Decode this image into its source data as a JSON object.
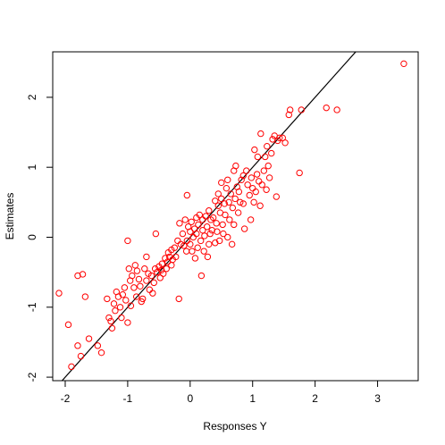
{
  "chart_data": {
    "type": "scatter",
    "title": "",
    "xlabel": "Responses Y",
    "ylabel": "Estimates",
    "xlim": [
      -2.2,
      3.65
    ],
    "ylim": [
      -2.05,
      2.65
    ],
    "xticks": [
      -2,
      -1,
      0,
      1,
      2,
      3
    ],
    "yticks": [
      -2,
      -1,
      0,
      1,
      2
    ],
    "grid": false,
    "point_color": "#ff0000",
    "line_color": "#000000",
    "reference_line": {
      "intercept": 0,
      "slope": 1
    },
    "series": [
      {
        "points": [
          [
            -2.1,
            -0.8
          ],
          [
            -1.95,
            -1.25
          ],
          [
            -1.9,
            -1.85
          ],
          [
            -1.8,
            -1.55
          ],
          [
            -1.75,
            -1.7
          ],
          [
            -1.8,
            -0.55
          ],
          [
            -1.72,
            -0.53
          ],
          [
            -1.68,
            -0.85
          ],
          [
            -1.62,
            -1.45
          ],
          [
            -1.48,
            -1.55
          ],
          [
            -1.42,
            -1.65
          ],
          [
            -1.33,
            -0.88
          ],
          [
            -1.3,
            -1.15
          ],
          [
            -1.27,
            -1.2
          ],
          [
            -1.25,
            -1.3
          ],
          [
            -1.22,
            -0.95
          ],
          [
            -1.2,
            -1.05
          ],
          [
            -1.18,
            -0.78
          ],
          [
            -1.15,
            -0.85
          ],
          [
            -1.12,
            -1.0
          ],
          [
            -1.1,
            -1.15
          ],
          [
            -1.08,
            -0.82
          ],
          [
            -1.05,
            -0.72
          ],
          [
            -1.03,
            -0.9
          ],
          [
            -1.0,
            -1.22
          ],
          [
            -1.0,
            -0.05
          ],
          [
            -0.98,
            -0.45
          ],
          [
            -0.96,
            -0.62
          ],
          [
            -0.95,
            -0.98
          ],
          [
            -0.93,
            -0.55
          ],
          [
            -0.9,
            -0.72
          ],
          [
            -0.88,
            -0.4
          ],
          [
            -0.86,
            -0.85
          ],
          [
            -0.85,
            -0.48
          ],
          [
            -0.82,
            -0.6
          ],
          [
            -0.8,
            -0.7
          ],
          [
            -0.78,
            -0.92
          ],
          [
            -0.76,
            -0.88
          ],
          [
            -0.73,
            -0.45
          ],
          [
            -0.7,
            -0.62
          ],
          [
            -0.7,
            -0.28
          ],
          [
            -0.67,
            -0.52
          ],
          [
            -0.65,
            -0.75
          ],
          [
            -0.62,
            -0.55
          ],
          [
            -0.6,
            -0.8
          ],
          [
            -0.58,
            -0.65
          ],
          [
            -0.56,
            -0.45
          ],
          [
            -0.55,
            0.05
          ],
          [
            -0.53,
            -0.5
          ],
          [
            -0.5,
            -0.42
          ],
          [
            -0.48,
            -0.58
          ],
          [
            -0.46,
            -0.47
          ],
          [
            -0.45,
            -0.38
          ],
          [
            -0.43,
            -0.52
          ],
          [
            -0.4,
            -0.3
          ],
          [
            -0.38,
            -0.45
          ],
          [
            -0.36,
            -0.35
          ],
          [
            -0.35,
            -0.22
          ],
          [
            -0.33,
            -0.28
          ],
          [
            -0.3,
            -0.4
          ],
          [
            -0.3,
            -0.18
          ],
          [
            -0.28,
            -0.32
          ],
          [
            -0.25,
            -0.15
          ],
          [
            -0.23,
            -0.28
          ],
          [
            -0.2,
            -0.05
          ],
          [
            -0.18,
            -0.88
          ],
          [
            -0.17,
            0.2
          ],
          [
            -0.15,
            -0.1
          ],
          [
            -0.12,
            0.05
          ],
          [
            -0.1,
            -0.12
          ],
          [
            -0.08,
            0.25
          ],
          [
            -0.06,
            -0.2
          ],
          [
            -0.05,
            0.6
          ],
          [
            -0.05,
            -0.05
          ],
          [
            -0.03,
            0.15
          ],
          [
            0.0,
            -0.1
          ],
          [
            0.0,
            0.08
          ],
          [
            0.02,
            0.22
          ],
          [
            0.03,
            -0.2
          ],
          [
            0.05,
            0.0
          ],
          [
            0.07,
            0.12
          ],
          [
            0.08,
            -0.3
          ],
          [
            0.1,
            0.28
          ],
          [
            0.1,
            0.05
          ],
          [
            0.12,
            -0.15
          ],
          [
            0.13,
            0.18
          ],
          [
            0.15,
            0.32
          ],
          [
            0.17,
            -0.05
          ],
          [
            0.18,
            -0.55
          ],
          [
            0.2,
            0.1
          ],
          [
            0.2,
            0.25
          ],
          [
            0.22,
            -0.2
          ],
          [
            0.23,
            0.02
          ],
          [
            0.25,
            0.3
          ],
          [
            0.27,
            0.15
          ],
          [
            0.28,
            -0.28
          ],
          [
            0.3,
            0.38
          ],
          [
            0.3,
            -0.1
          ],
          [
            0.32,
            0.05
          ],
          [
            0.33,
            0.25
          ],
          [
            0.35,
            0.1
          ],
          [
            0.37,
            0.28
          ],
          [
            0.4,
            0.52
          ],
          [
            0.4,
            -0.08
          ],
          [
            0.42,
            0.2
          ],
          [
            0.43,
            0.08
          ],
          [
            0.45,
            0.62
          ],
          [
            0.45,
            0.45
          ],
          [
            0.47,
            -0.05
          ],
          [
            0.48,
            0.35
          ],
          [
            0.5,
            0.78
          ],
          [
            0.5,
            0.55
          ],
          [
            0.52,
            0.18
          ],
          [
            0.53,
            0.05
          ],
          [
            0.55,
            0.48
          ],
          [
            0.56,
            0.32
          ],
          [
            0.58,
            0.7
          ],
          [
            0.6,
            0.82
          ],
          [
            0.6,
            0.0
          ],
          [
            0.62,
            0.5
          ],
          [
            0.63,
            0.25
          ],
          [
            0.65,
            0.62
          ],
          [
            0.67,
            -0.1
          ],
          [
            0.68,
            0.42
          ],
          [
            0.7,
            0.95
          ],
          [
            0.7,
            0.18
          ],
          [
            0.72,
            0.55
          ],
          [
            0.73,
            1.02
          ],
          [
            0.75,
            0.72
          ],
          [
            0.77,
            0.35
          ],
          [
            0.78,
            0.65
          ],
          [
            0.8,
            0.5
          ],
          [
            0.82,
            0.82
          ],
          [
            0.85,
            0.48
          ],
          [
            0.85,
            0.88
          ],
          [
            0.87,
            0.12
          ],
          [
            0.9,
            0.95
          ],
          [
            0.92,
            0.75
          ],
          [
            0.95,
            0.6
          ],
          [
            0.97,
            0.25
          ],
          [
            0.98,
            0.85
          ],
          [
            1.0,
            0.7
          ],
          [
            1.02,
            0.5
          ],
          [
            1.03,
            1.25
          ],
          [
            1.05,
            0.65
          ],
          [
            1.07,
            0.9
          ],
          [
            1.08,
            1.15
          ],
          [
            1.1,
            0.8
          ],
          [
            1.12,
            0.45
          ],
          [
            1.13,
            1.48
          ],
          [
            1.15,
            0.75
          ],
          [
            1.18,
            0.95
          ],
          [
            1.2,
            1.15
          ],
          [
            1.22,
            0.68
          ],
          [
            1.23,
            1.3
          ],
          [
            1.25,
            1.02
          ],
          [
            1.27,
            0.85
          ],
          [
            1.3,
            1.2
          ],
          [
            1.32,
            1.4
          ],
          [
            1.35,
            1.45
          ],
          [
            1.38,
            0.58
          ],
          [
            1.4,
            1.38
          ],
          [
            1.43,
            1.42
          ],
          [
            1.48,
            1.42
          ],
          [
            1.52,
            1.35
          ],
          [
            1.58,
            1.75
          ],
          [
            1.6,
            1.82
          ],
          [
            1.75,
            0.92
          ],
          [
            1.78,
            1.82
          ],
          [
            2.18,
            1.85
          ],
          [
            2.35,
            1.82
          ],
          [
            3.42,
            2.48
          ]
        ]
      }
    ]
  }
}
